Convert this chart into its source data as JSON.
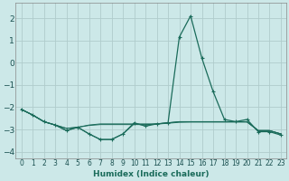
{
  "xlabel": "Humidex (Indice chaleur)",
  "ylabel": "",
  "background_color": "#cce8e8",
  "grid_color": "#b0cccc",
  "line_color": "#1a6b5a",
  "xlim": [
    -0.5,
    23.5
  ],
  "ylim": [
    -4.3,
    2.7
  ],
  "yticks": [
    -4,
    -3,
    -2,
    -1,
    0,
    1,
    2
  ],
  "xticks": [
    0,
    1,
    2,
    3,
    4,
    5,
    6,
    7,
    8,
    9,
    10,
    11,
    12,
    13,
    14,
    15,
    16,
    17,
    18,
    19,
    20,
    21,
    22,
    23
  ],
  "series": [
    [
      [
        0,
        -2.1
      ],
      [
        1,
        -2.35
      ],
      [
        2,
        -2.65
      ],
      [
        3,
        -2.8
      ],
      [
        4,
        -3.05
      ],
      [
        5,
        -2.9
      ],
      [
        6,
        -3.2
      ],
      [
        7,
        -3.45
      ],
      [
        8,
        -3.45
      ],
      [
        9,
        -3.2
      ],
      [
        10,
        -2.7
      ],
      [
        11,
        -2.85
      ],
      [
        12,
        -2.75
      ],
      [
        13,
        -2.7
      ],
      [
        14,
        1.15
      ],
      [
        15,
        2.1
      ],
      [
        16,
        0.2
      ],
      [
        17,
        -1.3
      ],
      [
        18,
        -2.55
      ],
      [
        19,
        -2.65
      ],
      [
        20,
        -2.55
      ],
      [
        21,
        -3.1
      ],
      [
        22,
        -3.1
      ],
      [
        23,
        -3.25
      ]
    ],
    [
      [
        0,
        -2.1
      ],
      [
        1,
        -2.35
      ],
      [
        2,
        -2.65
      ],
      [
        3,
        -2.8
      ],
      [
        4,
        -2.95
      ],
      [
        5,
        -2.9
      ],
      [
        6,
        -2.8
      ],
      [
        7,
        -2.75
      ],
      [
        8,
        -2.75
      ],
      [
        9,
        -2.75
      ],
      [
        10,
        -2.75
      ],
      [
        11,
        -2.75
      ],
      [
        12,
        -2.75
      ],
      [
        13,
        -2.7
      ],
      [
        14,
        -2.65
      ],
      [
        15,
        -2.65
      ],
      [
        16,
        -2.65
      ],
      [
        17,
        -2.65
      ],
      [
        18,
        -2.65
      ],
      [
        19,
        -2.65
      ],
      [
        20,
        -2.65
      ],
      [
        21,
        -3.05
      ],
      [
        22,
        -3.05
      ],
      [
        23,
        -3.2
      ]
    ],
    [
      [
        0,
        -2.1
      ],
      [
        1,
        -2.35
      ],
      [
        2,
        -2.65
      ],
      [
        3,
        -2.8
      ],
      [
        4,
        -3.05
      ],
      [
        5,
        -2.9
      ],
      [
        6,
        -3.2
      ],
      [
        7,
        -3.45
      ],
      [
        8,
        -3.45
      ],
      [
        9,
        -3.2
      ],
      [
        10,
        -2.75
      ],
      [
        11,
        -2.8
      ],
      [
        12,
        -2.75
      ],
      [
        13,
        -2.7
      ],
      [
        14,
        -2.65
      ],
      [
        15,
        -2.65
      ],
      [
        16,
        -2.65
      ],
      [
        17,
        -2.65
      ],
      [
        18,
        -2.65
      ],
      [
        19,
        -2.65
      ],
      [
        20,
        -2.65
      ],
      [
        21,
        -3.05
      ],
      [
        22,
        -3.05
      ],
      [
        23,
        -3.2
      ]
    ],
    [
      [
        0,
        -2.1
      ],
      [
        1,
        -2.35
      ],
      [
        2,
        -2.65
      ],
      [
        3,
        -2.8
      ],
      [
        4,
        -2.95
      ],
      [
        5,
        -2.9
      ],
      [
        6,
        -2.82
      ],
      [
        7,
        -2.78
      ],
      [
        8,
        -2.78
      ],
      [
        9,
        -2.78
      ],
      [
        10,
        -2.78
      ],
      [
        11,
        -2.78
      ],
      [
        12,
        -2.76
      ],
      [
        13,
        -2.72
      ],
      [
        14,
        -2.68
      ],
      [
        15,
        -2.67
      ],
      [
        16,
        -2.67
      ],
      [
        17,
        -2.67
      ],
      [
        18,
        -2.67
      ],
      [
        19,
        -2.67
      ],
      [
        20,
        -2.67
      ],
      [
        21,
        -3.05
      ],
      [
        22,
        -3.05
      ],
      [
        23,
        -3.2
      ]
    ]
  ]
}
